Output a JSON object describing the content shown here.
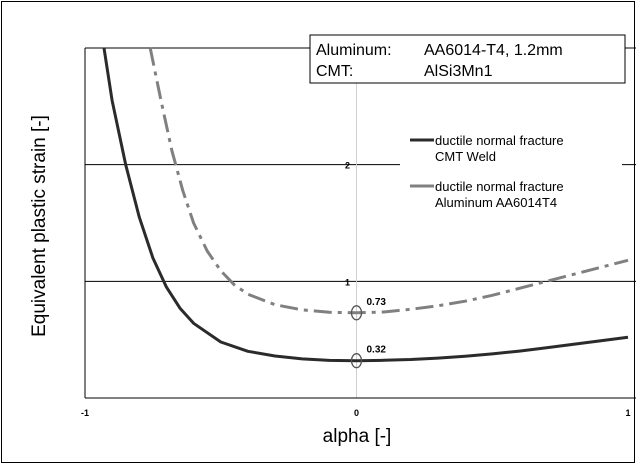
{
  "chart_data": {
    "type": "line",
    "xlabel": "alpha [-]",
    "ylabel": "Equivalent plastic strain [-]",
    "xlim": [
      -1,
      1
    ],
    "ylim": [
      0,
      3
    ],
    "x_ticks": [
      "-1",
      "0",
      "1"
    ],
    "y_ticks": [
      "1",
      "2"
    ],
    "grid": "horizontal",
    "legend_position": "right",
    "info_box": {
      "row1_label": "Aluminum:",
      "row1_value": "AA6014-T4, 1.2mm",
      "row2_label": "CMT:",
      "row2_value": "AlSi3Mn1"
    },
    "series": [
      {
        "name_line1": "ductile normal fracture",
        "name_line2": "CMT Weld",
        "color": "#2b2b2b",
        "style": "solid",
        "x": [
          -0.93,
          -0.9,
          -0.85,
          -0.8,
          -0.75,
          -0.7,
          -0.65,
          -0.6,
          -0.5,
          -0.4,
          -0.3,
          -0.2,
          -0.1,
          0.0,
          0.1,
          0.2,
          0.3,
          0.4,
          0.5,
          0.6,
          0.7,
          0.8,
          0.9,
          1.0
        ],
        "y": [
          3.0,
          2.55,
          2.0,
          1.55,
          1.2,
          0.95,
          0.77,
          0.64,
          0.48,
          0.4,
          0.36,
          0.335,
          0.322,
          0.32,
          0.323,
          0.33,
          0.342,
          0.358,
          0.378,
          0.402,
          0.43,
          0.46,
          0.49,
          0.52
        ],
        "marker_x": 0.0,
        "marker_y": 0.32,
        "marker_label": "0.32"
      },
      {
        "name_line1": "ductile normal fracture",
        "name_line2": "Aluminum AA6014T4",
        "color": "#808080",
        "style": "dashdot",
        "x": [
          -0.76,
          -0.72,
          -0.68,
          -0.64,
          -0.6,
          -0.55,
          -0.5,
          -0.45,
          -0.4,
          -0.3,
          -0.2,
          -0.1,
          0.0,
          0.1,
          0.2,
          0.3,
          0.4,
          0.5,
          0.6,
          0.7,
          0.8,
          0.9,
          1.0
        ],
        "y": [
          3.0,
          2.55,
          2.12,
          1.78,
          1.5,
          1.26,
          1.09,
          0.97,
          0.89,
          0.8,
          0.755,
          0.735,
          0.73,
          0.737,
          0.76,
          0.79,
          0.83,
          0.88,
          0.94,
          1.0,
          1.06,
          1.12,
          1.18
        ],
        "marker_x": 0.0,
        "marker_y": 0.73,
        "marker_label": "0.73"
      }
    ]
  }
}
